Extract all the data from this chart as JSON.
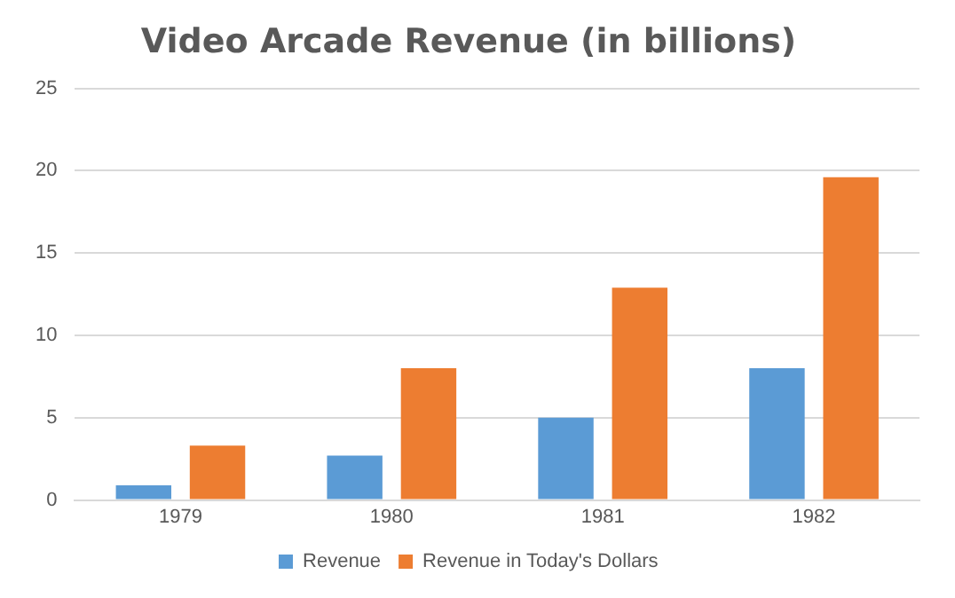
{
  "chart_data": {
    "type": "bar",
    "title": "Video Arcade Revenue (in billions)",
    "categories": [
      "1979",
      "1980",
      "1981",
      "1982"
    ],
    "series": [
      {
        "name": "Revenue",
        "color": "#5b9bd5",
        "values": [
          0.9,
          2.7,
          5.0,
          8.0
        ]
      },
      {
        "name": "Revenue in Today's Dollars",
        "color": "#ed7d31",
        "values": [
          3.3,
          8.0,
          12.9,
          19.6
        ]
      }
    ],
    "ylim": [
      0,
      25
    ],
    "yticks": [
      0,
      5,
      10,
      15,
      20,
      25
    ],
    "grid": "y",
    "legend": "bottom"
  }
}
